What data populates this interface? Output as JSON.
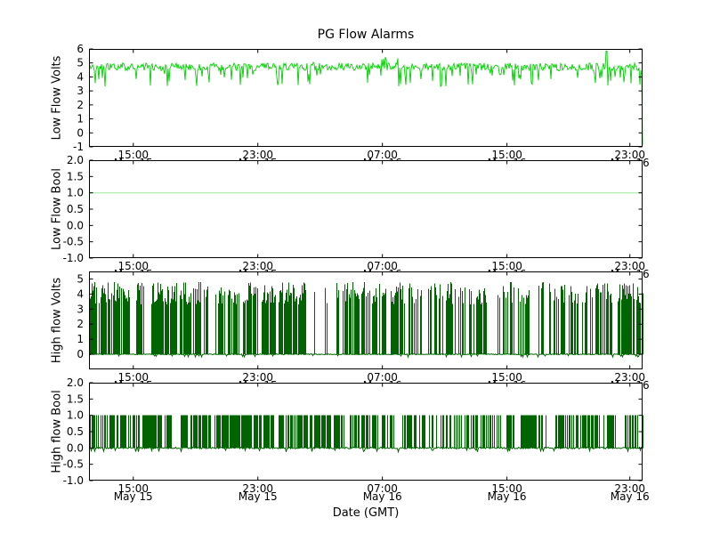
{
  "title": "PG Flow Alarms",
  "xlabel": "Date (GMT)",
  "x_axis": {
    "times": [
      "15:00",
      "23:00",
      "07:00",
      "15:00",
      "23:00"
    ],
    "dates": [
      "May 15",
      "May 15",
      "May 16",
      "May 16",
      "May 16"
    ],
    "fractions": [
      0.08,
      0.305,
      0.53,
      0.755,
      0.977
    ]
  },
  "chart_data": [
    {
      "type": "line",
      "name": "low-flow-volts",
      "ylabel": "Low Flow Volts",
      "ylim": [
        -1,
        6
      ],
      "yticks": [
        6,
        5,
        4,
        3,
        2,
        1,
        0,
        -1
      ],
      "ytick_labels": [
        "6",
        "5",
        "4",
        "3",
        "2",
        "1",
        "0",
        "-1"
      ],
      "color": "#00d000",
      "description": "Analog low-flow voltage holding around 4.5-5 V with frequent downward noise spikes to ~3.3-4.2 V, short bursts up to ~5.4 V, a single spike to ~5.9 V near the right end, and a drop toward -1 V at the right edge",
      "signal": {
        "kind": "noisy",
        "seed": 42,
        "base": 4.72,
        "noise": 0.27,
        "downProb": 0.13,
        "downMin": 3.3,
        "downMax": 4.25,
        "upProb": 0.03,
        "upMax": 5.1,
        "bursts": [
          {
            "from": 0.52,
            "to": 0.562,
            "max": 5.45
          },
          {
            "from": 0.838,
            "to": 0.853,
            "max": 5.05
          },
          {
            "from": 0.896,
            "to": 0.912,
            "max": 5.0
          }
        ],
        "tallSpike": {
          "at": 0.935,
          "value": 5.85
        },
        "endDrop": -0.85
      }
    },
    {
      "type": "line",
      "name": "low-flow-bool",
      "ylabel": "Low Flow Bool",
      "ylim": [
        -1,
        2
      ],
      "yticks": [
        2,
        1.5,
        1,
        0.5,
        0,
        -0.5,
        -1
      ],
      "ytick_labels": [
        "2.0",
        "1.5",
        "1.0",
        "0.5",
        "0.0",
        "-0.5",
        "-1.0"
      ],
      "color": "#b4f0b4",
      "description": "Boolean low-flow alarm constant at 1.0 across the whole period",
      "signal": {
        "kind": "constant",
        "value": 1
      }
    },
    {
      "type": "line",
      "name": "high-flow-volts",
      "ylabel": "High flow Volts",
      "ylim": [
        -1,
        5.5
      ],
      "yticks": [
        5,
        4,
        3,
        2,
        1,
        0
      ],
      "ytick_labels": [
        "5",
        "4",
        "3",
        "2",
        "1",
        "0"
      ],
      "color": "#006400",
      "description": "High-flow voltage: dense oscillation between 0 V baseline and ~3.3-4.8 V peaks with irregular short quiet gaps and slight dips below 0",
      "signal": {
        "kind": "burst",
        "seed": 43,
        "hMin": 3.3,
        "hMax": 4.8,
        "density": 0.8,
        "gapProb": 0.02,
        "gapLen": [
          2,
          9
        ],
        "dipProb": 0.06,
        "dip": -0.18
      }
    },
    {
      "type": "line",
      "name": "high-flow-bool",
      "ylabel": "High flow Bool",
      "ylim": [
        -1,
        2
      ],
      "yticks": [
        2,
        1.5,
        1,
        0.5,
        0,
        -0.5,
        -1
      ],
      "ytick_labels": [
        "2.0",
        "1.5",
        "1.0",
        "0.5",
        "0.0",
        "-0.5",
        "-1.0"
      ],
      "color": "#006400",
      "description": "Boolean high-flow alarm toggling densely between 0 and 1 with short quiet gaps and slight dips below 0",
      "signal": {
        "kind": "burst",
        "seed": 44,
        "hMin": 1,
        "hMax": 1,
        "density": 0.82,
        "gapProb": 0.02,
        "gapLen": [
          2,
          9
        ],
        "dipProb": 0.05,
        "dip": -0.12
      }
    }
  ]
}
